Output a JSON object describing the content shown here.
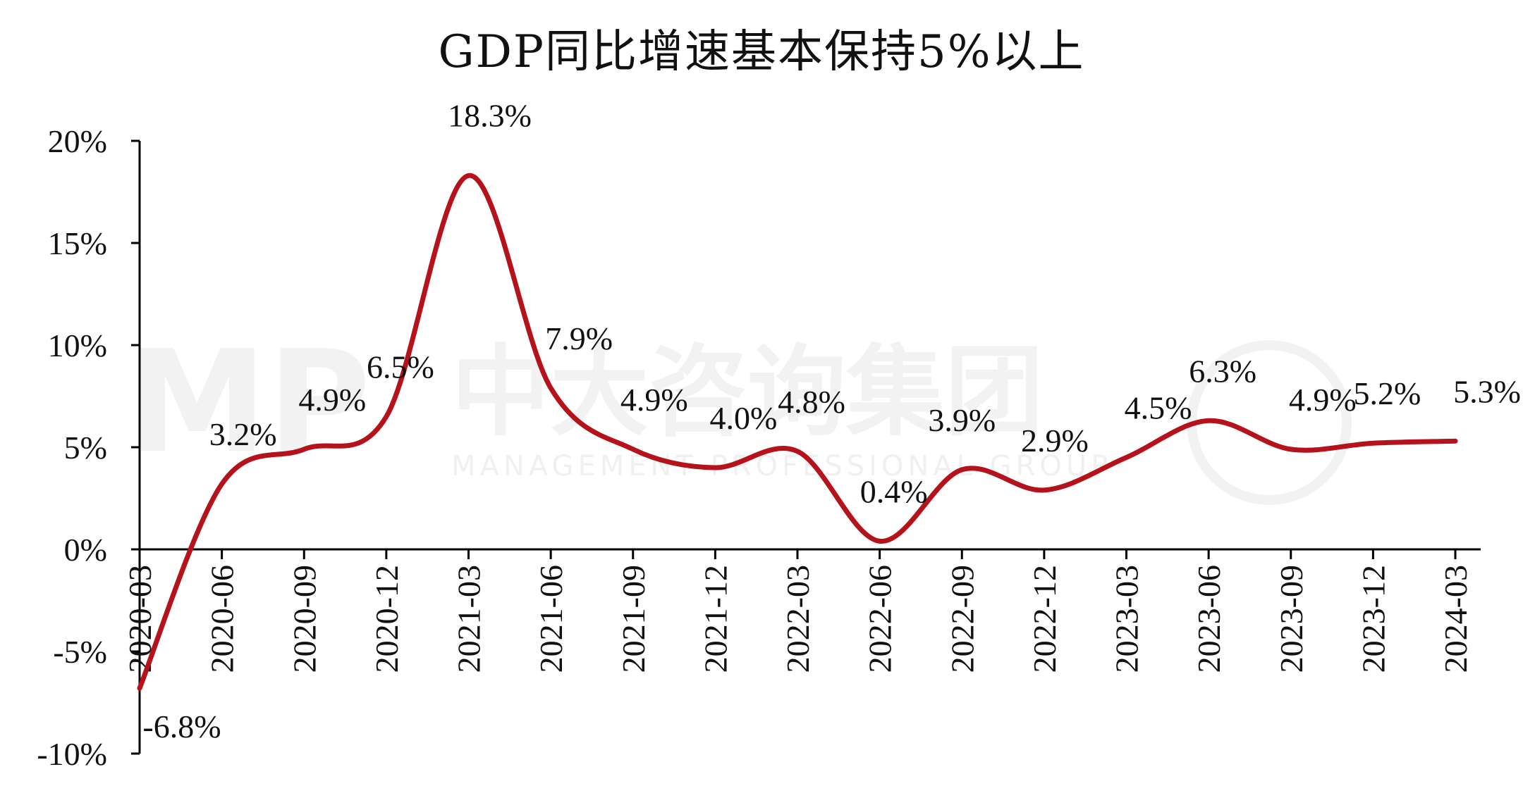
{
  "chart_data": {
    "type": "line",
    "title": "GDP同比增速基本保持5%以上",
    "xlabel": "",
    "ylabel": "",
    "categories": [
      "2020-03",
      "2020-06",
      "2020-09",
      "2020-12",
      "2021-03",
      "2021-06",
      "2021-09",
      "2021-12",
      "2022-03",
      "2022-06",
      "2022-09",
      "2022-12",
      "2023-03",
      "2023-06",
      "2023-09",
      "2023-12",
      "2024-03"
    ],
    "series": [
      {
        "name": "GDP同比增速",
        "color": "#b5121b",
        "values": [
          -6.8,
          3.2,
          4.9,
          6.5,
          18.3,
          7.9,
          4.9,
          4.0,
          4.8,
          0.4,
          3.9,
          2.9,
          4.5,
          6.3,
          4.9,
          5.2,
          5.3
        ],
        "data_labels": [
          "-6.8%",
          "3.2%",
          "4.9%",
          "6.5%",
          "18.3%",
          "7.9%",
          "4.9%",
          "4.0%",
          "4.8%",
          "0.4%",
          "3.9%",
          "2.9%",
          "4.5%",
          "6.3%",
          "4.9%",
          "5.2%",
          "5.3%"
        ]
      }
    ],
    "y_ticks": [
      20,
      15,
      10,
      5,
      0,
      -5,
      -10
    ],
    "y_tick_labels": [
      "20%",
      "15%",
      "10%",
      "5%",
      "0%",
      "-5%",
      "-10%"
    ],
    "ylim": [
      -10,
      20
    ],
    "grid": false,
    "legend": "none"
  },
  "watermark": {
    "chinese": "中大咨询集团",
    "english": "MANAGEMENT PROFESSIONAL GROUP",
    "logo_text": "MP"
  }
}
